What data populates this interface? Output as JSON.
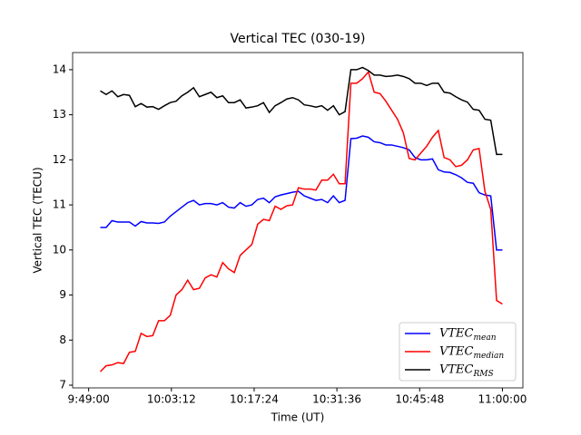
{
  "chart_data": {
    "type": "line",
    "title": "Vertical TEC (030-19)",
    "xlabel": "Time (UT)",
    "ylabel": "Vertical TEC (TECU)",
    "x": [
      "9:51:00",
      "9:52:00",
      "9:53:00",
      "9:54:00",
      "9:55:00",
      "9:56:00",
      "9:57:00",
      "9:58:00",
      "9:59:00",
      "10:00:00",
      "10:01:00",
      "10:02:00",
      "10:03:00",
      "10:04:00",
      "10:05:00",
      "10:06:00",
      "10:07:00",
      "10:08:00",
      "10:09:00",
      "10:10:00",
      "10:11:00",
      "10:12:00",
      "10:13:00",
      "10:14:00",
      "10:15:00",
      "10:16:00",
      "10:17:00",
      "10:18:00",
      "10:19:00",
      "10:20:00",
      "10:21:00",
      "10:22:00",
      "10:23:00",
      "10:24:00",
      "10:25:00",
      "10:26:00",
      "10:27:00",
      "10:28:00",
      "10:29:00",
      "10:30:00",
      "10:31:00",
      "10:32:00",
      "10:33:00",
      "10:34:00",
      "10:35:00",
      "10:36:00",
      "10:37:00",
      "10:38:00",
      "10:39:00",
      "10:40:00",
      "10:41:00",
      "10:42:00",
      "10:43:00",
      "10:44:00",
      "10:45:00",
      "10:46:00",
      "10:47:00",
      "10:48:00",
      "10:49:00",
      "10:50:00",
      "10:51:00",
      "10:52:00",
      "10:53:00",
      "10:54:00",
      "10:55:00",
      "10:56:00",
      "10:57:00",
      "10:58:00",
      "10:59:00",
      "11:00:00"
    ],
    "series": [
      {
        "name": "VTEC",
        "subscript": "mean",
        "color": "#0000ff",
        "values": [
          10.5,
          10.5,
          10.65,
          10.62,
          10.62,
          10.62,
          10.53,
          10.63,
          10.6,
          10.6,
          10.59,
          10.62,
          10.75,
          10.85,
          10.95,
          11.05,
          11.1,
          11.0,
          11.03,
          11.03,
          11.0,
          11.05,
          10.95,
          10.93,
          11.05,
          10.97,
          11.0,
          11.12,
          11.15,
          11.05,
          11.18,
          11.22,
          11.25,
          11.28,
          11.3,
          11.2,
          11.15,
          11.1,
          11.12,
          11.05,
          11.2,
          11.05,
          11.1,
          12.47,
          12.48,
          12.53,
          12.5,
          12.4,
          12.38,
          12.33,
          12.33,
          12.3,
          12.27,
          12.22,
          12.05,
          12.0,
          12.0,
          12.02,
          11.78,
          11.73,
          11.72,
          11.67,
          11.6,
          11.5,
          11.48,
          11.27,
          11.22,
          11.2,
          10.0,
          10.0
        ]
      },
      {
        "name": "VTEC",
        "subscript": "median",
        "color": "#ff0000",
        "values": [
          7.3,
          7.43,
          7.45,
          7.5,
          7.48,
          7.73,
          7.75,
          8.15,
          8.08,
          8.1,
          8.43,
          8.43,
          8.55,
          9.0,
          9.12,
          9.33,
          9.12,
          9.15,
          9.38,
          9.45,
          9.4,
          9.72,
          9.58,
          9.5,
          9.88,
          10.0,
          10.12,
          10.57,
          10.68,
          10.65,
          10.97,
          10.9,
          10.98,
          11.0,
          11.38,
          11.35,
          11.35,
          11.33,
          11.55,
          11.55,
          11.68,
          11.47,
          11.47,
          13.7,
          13.7,
          13.8,
          13.95,
          13.5,
          13.47,
          13.3,
          13.1,
          12.9,
          12.6,
          12.03,
          12.0,
          12.15,
          12.3,
          12.5,
          12.65,
          12.05,
          12.0,
          11.85,
          11.88,
          12.0,
          12.22,
          12.25,
          11.3,
          10.9,
          8.88,
          8.8
        ]
      },
      {
        "name": "VTEC",
        "subscript": "RMS",
        "color": "#000000",
        "values": [
          13.53,
          13.45,
          13.53,
          13.4,
          13.45,
          13.43,
          13.18,
          13.25,
          13.17,
          13.18,
          13.12,
          13.2,
          13.27,
          13.3,
          13.42,
          13.5,
          13.6,
          13.4,
          13.45,
          13.5,
          13.38,
          13.42,
          13.27,
          13.27,
          13.33,
          13.15,
          13.17,
          13.2,
          13.27,
          13.05,
          13.2,
          13.27,
          13.35,
          13.38,
          13.33,
          13.22,
          13.2,
          13.17,
          13.2,
          13.1,
          13.2,
          13.0,
          13.07,
          14.0,
          14.0,
          14.05,
          13.98,
          13.88,
          13.88,
          13.85,
          13.86,
          13.88,
          13.85,
          13.8,
          13.7,
          13.7,
          13.65,
          13.7,
          13.7,
          13.5,
          13.48,
          13.4,
          13.33,
          13.28,
          13.12,
          13.1,
          12.9,
          12.88,
          12.12,
          12.12
        ]
      }
    ],
    "xlim": [
      "9:46:15",
      "11:03:31"
    ],
    "xticks": [
      "9:49:00",
      "10:03:12",
      "10:17:24",
      "10:31:36",
      "10:45:48",
      "11:00:00"
    ],
    "ylim": [
      6.94,
      14.38
    ],
    "yticks": [
      7,
      8,
      9,
      10,
      11,
      12,
      13,
      14
    ],
    "legend": "lower right"
  }
}
